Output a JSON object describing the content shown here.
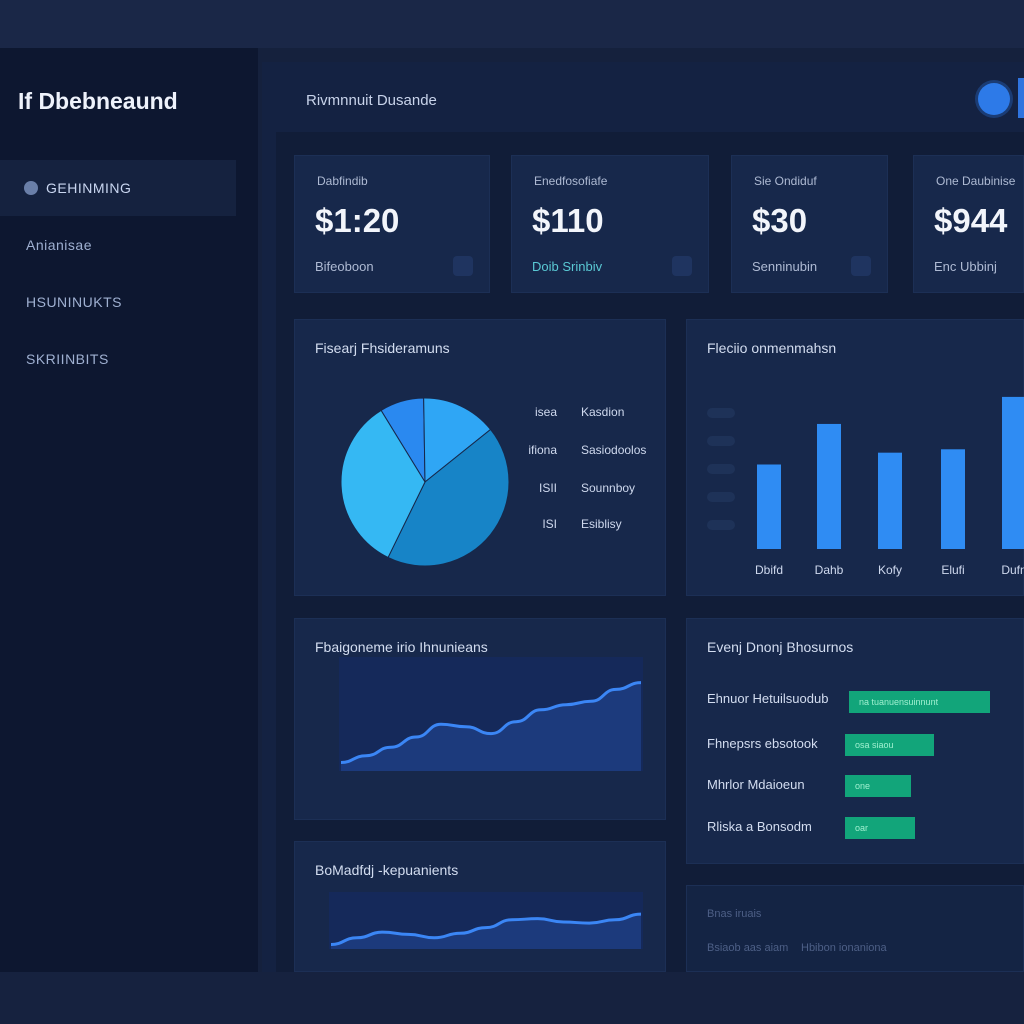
{
  "app": {
    "brand": "If Dbebneaund"
  },
  "sidebar": {
    "items": [
      {
        "label": "GEHINMING",
        "active": true
      },
      {
        "label": "Anianisae",
        "active": false
      },
      {
        "label": "HSUNINUKTS",
        "active": false
      },
      {
        "label": "SKRIINBITS",
        "active": false
      }
    ]
  },
  "header": {
    "title": "Rivmnnuit Dusande",
    "avatar_icon": "user-avatar-icon"
  },
  "stats": [
    {
      "label": "Dabfindib",
      "value": "$1:20",
      "sub": "Bifeoboon",
      "accent": false
    },
    {
      "label": "Enedfosofiafe",
      "value": "$110",
      "sub": "Doib Srinbiv",
      "accent": true
    },
    {
      "label": "Sie Ondiduf",
      "value": "$30",
      "sub": "Senninubin",
      "accent": false
    },
    {
      "label": "One Daubinise",
      "value": "$944",
      "sub": "Enc Ubbinj",
      "accent": false
    }
  ],
  "pie_panel": {
    "title": "Fisearj Fhsideramuns",
    "legend": [
      {
        "value": "isea",
        "name": "Kasdion"
      },
      {
        "value": "ifiona",
        "name": "Sasiodoolos"
      },
      {
        "value": "ISII",
        "name": "Sounnboy"
      },
      {
        "value": "ISI",
        "name": "Esiblisy"
      }
    ]
  },
  "bar_panel": {
    "title": "Fleciio onmenmahsn"
  },
  "line_panel_1": {
    "title": "Fbaigoneme irio Ihnunieans"
  },
  "line_panel_2": {
    "title": "BoMadfdj -kepuanients"
  },
  "progress_panel": {
    "title": "Evenj Dnonj Bhosurnos",
    "rows": [
      {
        "label": "Ehnuor Hetuilsuodub",
        "bar_text": "na tuanuensuinnunt",
        "value": 0.81
      },
      {
        "label": "Fhnepsrs ebsotook",
        "bar_text": "osa siaou",
        "value": 0.51
      },
      {
        "label": "Mhrlor Mdaioeun",
        "bar_text": "one",
        "value": 0.38
      },
      {
        "label": "Rliska a Bonsodm",
        "bar_text": "oar",
        "value": 0.4
      }
    ]
  },
  "bottom_panel": {
    "line1": "Bnas iruais",
    "line2a": "Bsiaob aas aiam",
    "line2b": "Hbibon ionaniona"
  },
  "chart_data": [
    {
      "type": "pie",
      "title": "Fisearj Fhsideramuns",
      "labels": [
        "Kasdion",
        "Sasiodoolos",
        "Sounnboy",
        "Esiblisy"
      ],
      "values": [
        8.5,
        14.5,
        43,
        34
      ],
      "colors": [
        "#2a89f0",
        "#2fa6f5",
        "#1784c7",
        "#35b8f3"
      ]
    },
    {
      "type": "bar",
      "title": "Fleciio onmenmahsn",
      "categories": [
        "Dbifd",
        "Dahb",
        "Kofy",
        "Elufi",
        "Dufn"
      ],
      "values": [
        50,
        74,
        57,
        59,
        90
      ],
      "ylim": [
        0,
        100
      ],
      "color": "#2f8cf3"
    },
    {
      "type": "area",
      "title": "Fbaigoneme irio Ihnunieans",
      "x": [
        0,
        1,
        2,
        3,
        4,
        5,
        6,
        7,
        8,
        9,
        10,
        11,
        12
      ],
      "values": [
        10,
        18,
        28,
        40,
        55,
        52,
        44,
        58,
        72,
        78,
        82,
        96,
        104
      ],
      "ylim": [
        0,
        120
      ],
      "color": "#3b86f5"
    },
    {
      "type": "area",
      "title": "BoMadfdj -kepuanients",
      "x": [
        0,
        1,
        2,
        3,
        4,
        5,
        6,
        7,
        8,
        9,
        10,
        11,
        12
      ],
      "values": [
        8,
        20,
        30,
        26,
        20,
        28,
        38,
        52,
        54,
        48,
        46,
        52,
        62
      ],
      "ylim": [
        0,
        80
      ],
      "color": "#3b86f5"
    }
  ]
}
